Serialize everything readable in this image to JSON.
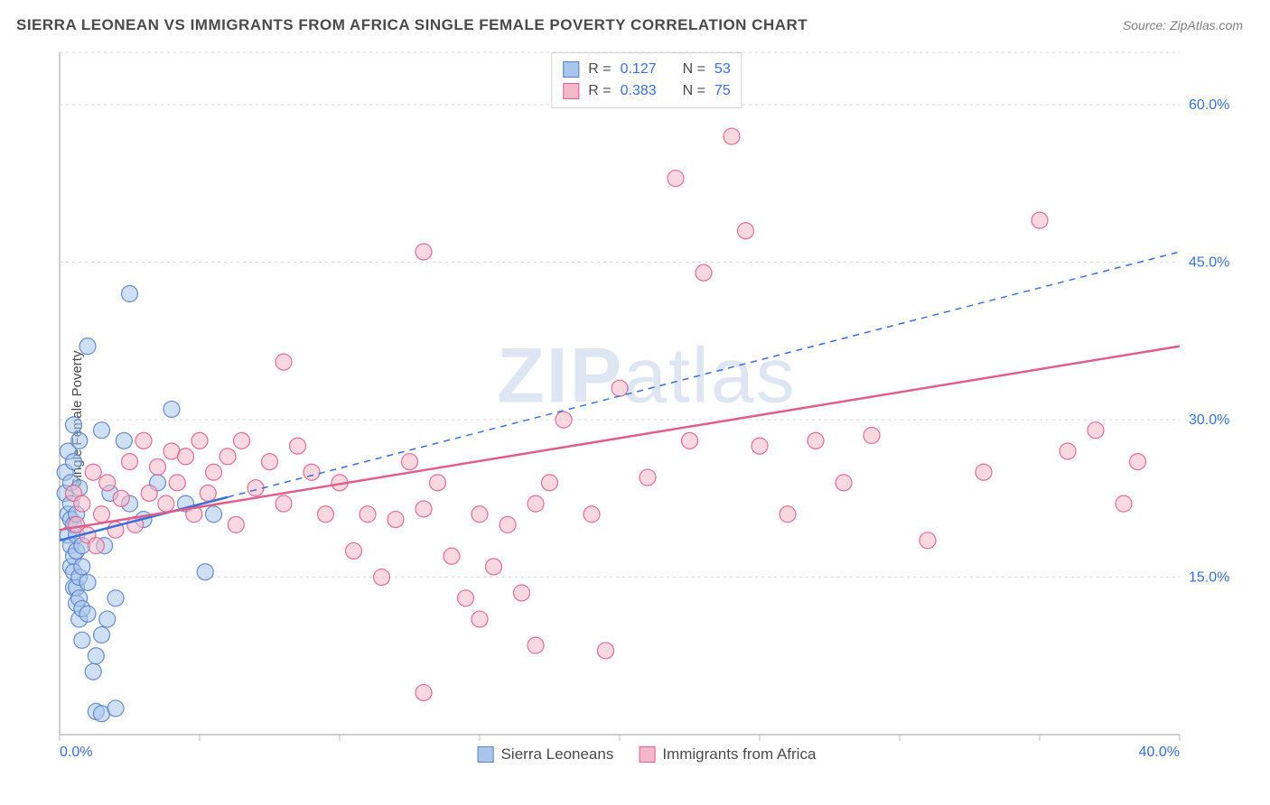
{
  "title": "SIERRA LEONEAN VS IMMIGRANTS FROM AFRICA SINGLE FEMALE POVERTY CORRELATION CHART",
  "source_label": "Source:",
  "source_name": "ZipAtlas.com",
  "ylabel": "Single Female Poverty",
  "watermark_a": "ZIP",
  "watermark_b": "atlas",
  "chart": {
    "type": "scatter",
    "background_color": "#ffffff",
    "grid_color": "#d8d8d8",
    "axis_color": "#bfbfbf",
    "tick_label_color": "#3b6fd8",
    "tick_fontsize": 16,
    "xlim": [
      0,
      40
    ],
    "ylim": [
      0,
      65
    ],
    "x_ticks": [
      0,
      5,
      10,
      15,
      20,
      25,
      30,
      35,
      40
    ],
    "x_tick_labels": {
      "0": "0.0%",
      "40": "40.0%"
    },
    "y_ticks": [
      15,
      30,
      45,
      60
    ],
    "y_tick_labels": {
      "15": "15.0%",
      "30": "30.0%",
      "45": "45.0%",
      "60": "60.0%"
    },
    "marker_radius": 9,
    "marker_opacity": 0.55,
    "series": [
      {
        "name": "Sierra Leoneans",
        "color": "#6b9ce0",
        "fill": "#a8c5eb",
        "stroke": "#5a82c7",
        "r_label": "R =",
        "r_value": "0.127",
        "n_label": "N =",
        "n_value": "53",
        "trend": {
          "x1": 0,
          "y1": 18.5,
          "x2": 40,
          "y2": 46,
          "color": "#3b6fd8",
          "solid_until_x": 6,
          "width": 2.5,
          "dash": "7,6"
        },
        "points": [
          [
            0.2,
            23
          ],
          [
            0.2,
            25
          ],
          [
            0.3,
            19
          ],
          [
            0.3,
            21
          ],
          [
            0.3,
            27
          ],
          [
            0.4,
            16
          ],
          [
            0.4,
            18
          ],
          [
            0.4,
            20.5
          ],
          [
            0.4,
            22
          ],
          [
            0.4,
            24
          ],
          [
            0.5,
            14
          ],
          [
            0.5,
            15.5
          ],
          [
            0.5,
            17
          ],
          [
            0.5,
            20
          ],
          [
            0.5,
            26
          ],
          [
            0.5,
            29.5
          ],
          [
            0.6,
            12.5
          ],
          [
            0.6,
            14
          ],
          [
            0.6,
            17.5
          ],
          [
            0.6,
            19
          ],
          [
            0.6,
            21
          ],
          [
            0.7,
            11
          ],
          [
            0.7,
            13
          ],
          [
            0.7,
            15
          ],
          [
            0.7,
            23.5
          ],
          [
            0.7,
            28
          ],
          [
            0.8,
            9
          ],
          [
            0.8,
            12
          ],
          [
            0.8,
            16
          ],
          [
            0.8,
            18
          ],
          [
            1.0,
            37
          ],
          [
            1.0,
            14.5
          ],
          [
            1.0,
            11.5
          ],
          [
            1.2,
            6
          ],
          [
            1.3,
            2.2
          ],
          [
            1.3,
            7.5
          ],
          [
            1.5,
            2
          ],
          [
            1.5,
            9.5
          ],
          [
            1.5,
            29
          ],
          [
            1.6,
            18
          ],
          [
            1.7,
            11
          ],
          [
            1.8,
            23
          ],
          [
            2.0,
            2.5
          ],
          [
            2.0,
            13
          ],
          [
            2.3,
            28
          ],
          [
            2.5,
            42
          ],
          [
            2.5,
            22
          ],
          [
            3.0,
            20.5
          ],
          [
            3.5,
            24
          ],
          [
            4.0,
            31
          ],
          [
            4.5,
            22
          ],
          [
            5.2,
            15.5
          ],
          [
            5.5,
            21
          ]
        ]
      },
      {
        "name": "Immigrants from Africa",
        "color": "#e87ca1",
        "fill": "#f4b8cb",
        "stroke": "#e05f8a",
        "r_label": "R =",
        "r_value": "0.383",
        "n_label": "N =",
        "n_value": "75",
        "trend": {
          "x1": 0,
          "y1": 19.5,
          "x2": 40,
          "y2": 37,
          "color": "#e05f8a",
          "solid_until_x": 40,
          "width": 2.5
        },
        "points": [
          [
            0.5,
            23
          ],
          [
            0.6,
            20
          ],
          [
            0.8,
            22
          ],
          [
            1.0,
            19
          ],
          [
            1.2,
            25
          ],
          [
            1.3,
            18
          ],
          [
            1.5,
            21
          ],
          [
            1.7,
            24
          ],
          [
            2.0,
            19.5
          ],
          [
            2.2,
            22.5
          ],
          [
            2.5,
            26
          ],
          [
            2.7,
            20
          ],
          [
            3.0,
            28
          ],
          [
            3.2,
            23
          ],
          [
            3.5,
            25.5
          ],
          [
            3.8,
            22
          ],
          [
            4.0,
            27
          ],
          [
            4.2,
            24
          ],
          [
            4.5,
            26.5
          ],
          [
            4.8,
            21
          ],
          [
            5.0,
            28
          ],
          [
            5.3,
            23
          ],
          [
            5.5,
            25
          ],
          [
            6.0,
            26.5
          ],
          [
            6.3,
            20
          ],
          [
            6.5,
            28
          ],
          [
            7.0,
            23.5
          ],
          [
            7.5,
            26
          ],
          [
            8.0,
            22
          ],
          [
            8.5,
            27.5
          ],
          [
            8.0,
            35.5
          ],
          [
            9.0,
            25
          ],
          [
            9.5,
            21
          ],
          [
            10.0,
            24
          ],
          [
            10.5,
            17.5
          ],
          [
            11.0,
            21
          ],
          [
            11.5,
            15
          ],
          [
            12.0,
            20.5
          ],
          [
            12.5,
            26
          ],
          [
            13.0,
            21.5
          ],
          [
            13.0,
            4
          ],
          [
            13.5,
            24
          ],
          [
            14.0,
            17
          ],
          [
            14.5,
            13
          ],
          [
            15.0,
            21
          ],
          [
            15.0,
            11
          ],
          [
            15.5,
            16
          ],
          [
            16.0,
            20
          ],
          [
            16.5,
            13.5
          ],
          [
            17.0,
            22
          ],
          [
            17.0,
            8.5
          ],
          [
            13.0,
            46
          ],
          [
            17.5,
            24
          ],
          [
            18.0,
            30
          ],
          [
            19.0,
            21
          ],
          [
            19.5,
            8
          ],
          [
            20.0,
            33
          ],
          [
            21.0,
            24.5
          ],
          [
            22.0,
            53
          ],
          [
            22.5,
            28
          ],
          [
            23.0,
            44
          ],
          [
            24.0,
            57
          ],
          [
            24.5,
            48
          ],
          [
            25.0,
            27.5
          ],
          [
            26.0,
            21
          ],
          [
            27.0,
            28
          ],
          [
            28.0,
            24
          ],
          [
            29.0,
            28.5
          ],
          [
            31.0,
            18.5
          ],
          [
            33.0,
            25
          ],
          [
            35.0,
            49
          ],
          [
            36.0,
            27
          ],
          [
            37.0,
            29
          ],
          [
            38.0,
            22
          ],
          [
            38.5,
            26
          ]
        ]
      }
    ]
  }
}
